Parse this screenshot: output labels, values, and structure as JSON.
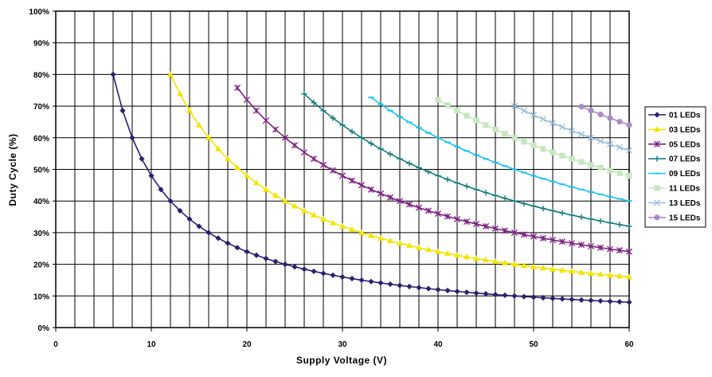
{
  "chart_data": {
    "type": "line",
    "title": "",
    "xlabel": "Supply Voltage (V)",
    "ylabel": "Duty Cycle (%)",
    "xlim": [
      0,
      60
    ],
    "ylim": [
      0,
      100
    ],
    "x_ticks": [
      "0",
      "10",
      "20",
      "30",
      "40",
      "50",
      "60"
    ],
    "y_ticks": [
      "0%",
      "10%",
      "20%",
      "30%",
      "40%",
      "50%",
      "60%",
      "70%",
      "80%",
      "90%",
      "100%"
    ],
    "grid": true,
    "legend_position": "right",
    "series": [
      {
        "name": "01 LEDs",
        "color": "#2b1f6e",
        "marker": "diamond",
        "led_count": 1,
        "x_start": 6,
        "x_end": 60
      },
      {
        "name": "03 LEDs",
        "color": "#f2e600",
        "marker": "triangle",
        "led_count": 3,
        "x_start": 12,
        "x_end": 60
      },
      {
        "name": "05 LEDs",
        "color": "#7b2180",
        "marker": "star",
        "led_count": 5,
        "x_start": 19,
        "x_end": 60
      },
      {
        "name": "07 LEDs",
        "color": "#1a7a7a",
        "marker": "plus",
        "led_count": 7,
        "x_start": 26,
        "x_end": 60
      },
      {
        "name": "09 LEDs",
        "color": "#21c4f0",
        "marker": "dash",
        "led_count": 9,
        "x_start": 33,
        "x_end": 60
      },
      {
        "name": "11 LEDs",
        "color": "#c8e6c0",
        "marker": "square",
        "led_count": 11,
        "x_start": 40,
        "x_end": 60
      },
      {
        "name": "13 LEDs",
        "color": "#9bbfe0",
        "marker": "x",
        "led_count": 13,
        "x_start": 48,
        "x_end": 60
      },
      {
        "name": "15 LEDs",
        "color": "#a98bc6",
        "marker": "circle",
        "led_count": 15,
        "x_start": 55,
        "x_end": 60
      }
    ]
  }
}
